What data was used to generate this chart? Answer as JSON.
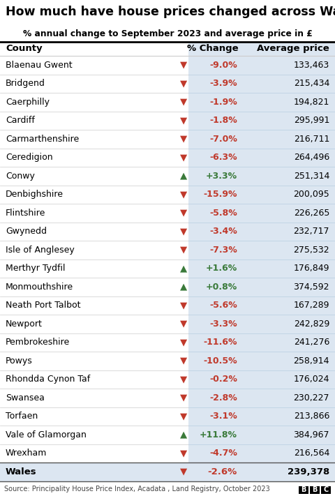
{
  "title": "How much have house prices changed across Wales?",
  "subtitle": "% annual change to September 2023 and average price in £",
  "col_headers": [
    "County",
    "% Change",
    "Average price"
  ],
  "rows": [
    {
      "county": "Blaenau Gwent",
      "change": "-9.0%",
      "price": "133,463",
      "up": false
    },
    {
      "county": "Bridgend",
      "change": "-3.9%",
      "price": "215,434",
      "up": false
    },
    {
      "county": "Caerphilly",
      "change": "-1.9%",
      "price": "194,821",
      "up": false
    },
    {
      "county": "Cardiff",
      "change": "-1.8%",
      "price": "295,991",
      "up": false
    },
    {
      "county": "Carmarthenshire",
      "change": "-7.0%",
      "price": "216,711",
      "up": false
    },
    {
      "county": "Ceredigion",
      "change": "-6.3%",
      "price": "264,496",
      "up": false
    },
    {
      "county": "Conwy",
      "change": "+3.3%",
      "price": "251,314",
      "up": true
    },
    {
      "county": "Denbighshire",
      "change": "-15.9%",
      "price": "200,095",
      "up": false
    },
    {
      "county": "Flintshire",
      "change": "-5.8%",
      "price": "226,265",
      "up": false
    },
    {
      "county": "Gwynedd",
      "change": "-3.4%",
      "price": "232,717",
      "up": false
    },
    {
      "county": "Isle of Anglesey",
      "change": "-7.3%",
      "price": "275,532",
      "up": false
    },
    {
      "county": "Merthyr Tydfil",
      "change": "+1.6%",
      "price": "176,849",
      "up": true
    },
    {
      "county": "Monmouthshire",
      "change": "+0.8%",
      "price": "374,592",
      "up": true
    },
    {
      "county": "Neath Port Talbot",
      "change": "-5.6%",
      "price": "167,289",
      "up": false
    },
    {
      "county": "Newport",
      "change": "-3.3%",
      "price": "242,829",
      "up": false
    },
    {
      "county": "Pembrokeshire",
      "change": "-11.6%",
      "price": "241,276",
      "up": false
    },
    {
      "county": "Powys",
      "change": "-10.5%",
      "price": "258,914",
      "up": false
    },
    {
      "county": "Rhondda Cynon Taf",
      "change": "-0.2%",
      "price": "176,024",
      "up": false
    },
    {
      "county": "Swansea",
      "change": "-2.8%",
      "price": "230,227",
      "up": false
    },
    {
      "county": "Torfaen",
      "change": "-3.1%",
      "price": "213,866",
      "up": false
    },
    {
      "county": "Vale of Glamorgan",
      "change": "+11.8%",
      "price": "384,967",
      "up": true
    },
    {
      "county": "Wrexham",
      "change": "-4.7%",
      "price": "216,564",
      "up": false
    }
  ],
  "footer_row": {
    "county": "Wales",
    "change": "-2.6%",
    "price": "239,378",
    "up": false
  },
  "source_text": "Source: Principality House Price Index, Acadata , Land Registry, October 2023",
  "bg_color": "#ffffff",
  "right_col_bg": "#dce6f1",
  "footer_bg": "#dce6f1",
  "title_color": "#000000",
  "up_arrow_color": "#3a7a3a",
  "down_arrow_color": "#c0392b"
}
